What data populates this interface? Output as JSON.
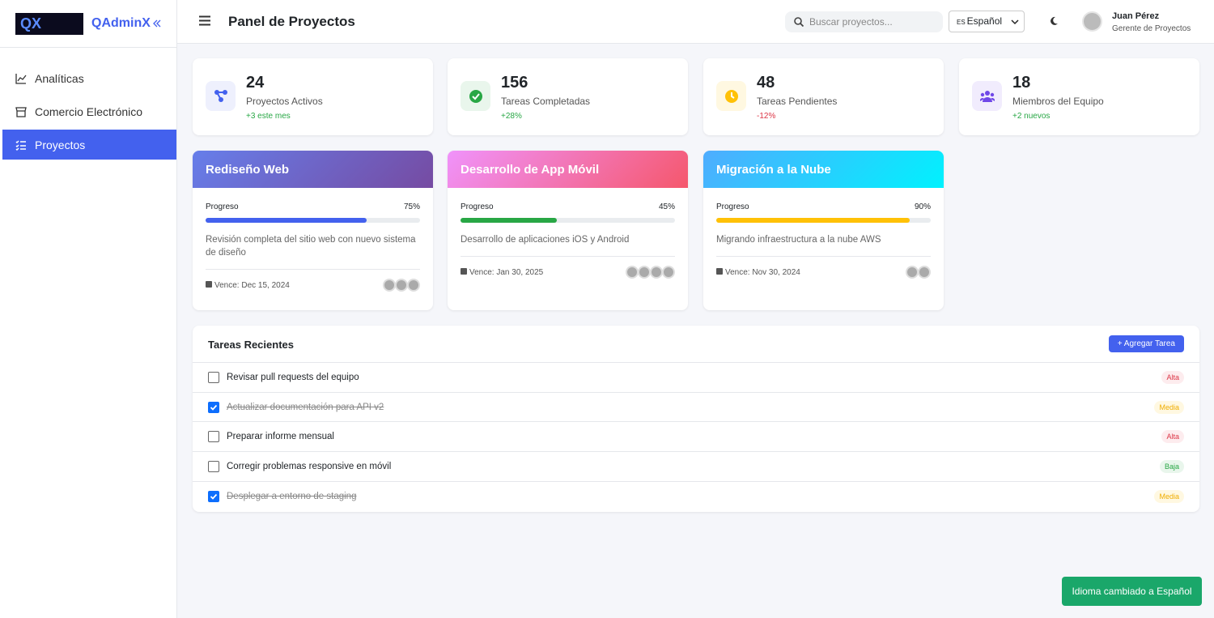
{
  "brand": {
    "logo_text": "QX",
    "name": "QAdminX"
  },
  "sidebar": {
    "items": [
      {
        "label": "Analíticas"
      },
      {
        "label": "Comercio Electrónico"
      },
      {
        "label": "Proyectos",
        "active": true
      }
    ]
  },
  "header": {
    "title": "Panel de Proyectos",
    "search_placeholder": "Buscar proyectos...",
    "language_code": "ES",
    "language": "Español",
    "user": {
      "name": "Juan Pérez",
      "role": "Gerente de Proyectos"
    }
  },
  "stats": [
    {
      "value": 24,
      "label": "Proyectos Activos",
      "change": "+3 este mes",
      "change_color": "#28a745",
      "color": "#4361ee",
      "bg": "#eef0fd"
    },
    {
      "value": 156,
      "label": "Tareas Completadas",
      "change": "+28%",
      "change_color": "#28a745",
      "color": "#28a745",
      "bg": "#e9f6ec"
    },
    {
      "value": 48,
      "label": "Tareas Pendientes",
      "change": "-12%",
      "change_color": "#dc3545",
      "color": "#ffc107",
      "bg": "#fff8e1"
    },
    {
      "value": 18,
      "label": "Miembros del Equipo",
      "change": "+2 nuevos",
      "change_color": "#28a745",
      "color": "#7048e8",
      "bg": "#f1ecfd"
    }
  ],
  "projects": [
    {
      "title": "Rediseño Web",
      "gradient": [
        "#667eea",
        "#764ba2"
      ],
      "progress_label": "Progreso",
      "progress": {
        "value": 75,
        "label": "75%"
      },
      "bar_color": "#4361ee",
      "description": "Revisión completa del sitio web con nuevo sistema de diseño",
      "due": "Vence: Dec 15, 2024",
      "members": 3
    },
    {
      "title": "Desarrollo de App Móvil",
      "gradient": [
        "#f093fb",
        "#f5576c"
      ],
      "progress_label": "Progreso",
      "progress": {
        "value": 45,
        "label": "45%"
      },
      "bar_color": "#28a745",
      "description": "Desarrollo de aplicaciones iOS y Android",
      "due": "Vence: Jan 30, 2025",
      "members": 4
    },
    {
      "title": "Migración a la Nube",
      "gradient": [
        "#4facfe",
        "#00f2fe"
      ],
      "progress_label": "Progreso",
      "progress": {
        "value": 90,
        "label": "90%"
      },
      "bar_color": "#ffc107",
      "description": "Migrando infraestructura a la nube AWS",
      "due": "Vence: Nov 30, 2024",
      "members": 2
    }
  ],
  "tasks": {
    "title": "Tareas Recientes",
    "add_button": "+ Agregar Tarea",
    "items": [
      {
        "text": "Revisar pull requests del equipo",
        "done": false,
        "priority": "Alta",
        "badge_color": "#dc3545",
        "badge_bg": "#fdecee"
      },
      {
        "text": "Actualizar documentación para API v2",
        "done": true,
        "priority": "Media",
        "badge_color": "#f0ad00",
        "badge_bg": "#fff8e1"
      },
      {
        "text": "Preparar informe mensual",
        "done": false,
        "priority": "Alta",
        "badge_color": "#dc3545",
        "badge_bg": "#fdecee"
      },
      {
        "text": "Corregir problemas responsive en móvil",
        "done": false,
        "priority": "Baja",
        "badge_color": "#28a745",
        "badge_bg": "#e9f6ec"
      },
      {
        "text": "Desplegar a entorno de staging",
        "done": true,
        "priority": "Media",
        "badge_color": "#f0ad00",
        "badge_bg": "#fff8e1"
      }
    ]
  },
  "toast": "Idioma cambiado a Español"
}
